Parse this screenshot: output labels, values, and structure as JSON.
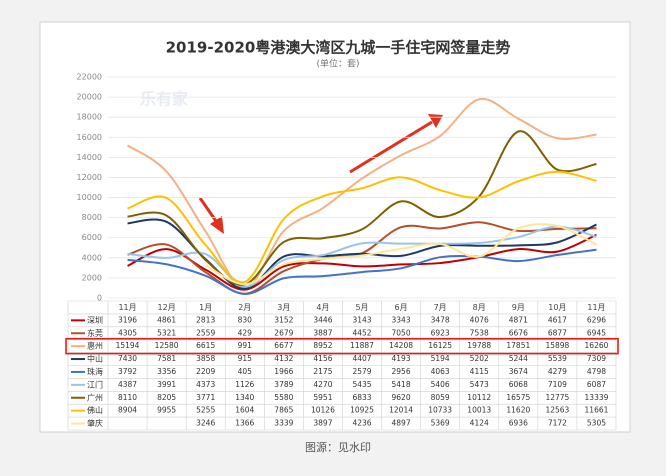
{
  "chart_data": {
    "type": "line",
    "title": "2019-2020粤港澳大湾区九城一手住宅网签量走势",
    "subtitle": "(单位：套)",
    "watermark": "乐有家",
    "caption": "图源：见水印",
    "categories": [
      "11月",
      "12月",
      "1月",
      "2月",
      "3月",
      "4月",
      "5月",
      "6月",
      "7月",
      "8月",
      "9月",
      "10月",
      "11月"
    ],
    "ylim": [
      0,
      22000
    ],
    "yticks": [
      0,
      2000,
      4000,
      6000,
      8000,
      10000,
      12000,
      14000,
      16000,
      18000,
      20000,
      22000
    ],
    "grid": true,
    "highlight": "惠州",
    "series": [
      {
        "name": "深圳",
        "color": "#c00000",
        "values": [
          3196,
          4861,
          2813,
          830,
          3152,
          3446,
          3143,
          3343,
          3478,
          4076,
          4871,
          4617,
          6296
        ]
      },
      {
        "name": "东莞",
        "color": "#b4502d",
        "values": [
          4305,
          5321,
          2559,
          429,
          2679,
          3887,
          4452,
          7050,
          6923,
          7538,
          6676,
          6877,
          6945
        ]
      },
      {
        "name": "惠州",
        "color": "#f4b183",
        "values": [
          15194,
          12580,
          6615,
          991,
          6677,
          8952,
          11887,
          14208,
          16125,
          19788,
          17851,
          15898,
          16260
        ]
      },
      {
        "name": "中山",
        "color": "#1f3864",
        "values": [
          7430,
          7581,
          3858,
          915,
          4132,
          4156,
          4407,
          4193,
          5194,
          5202,
          5244,
          5539,
          7309
        ]
      },
      {
        "name": "珠海",
        "color": "#4472c4",
        "values": [
          3792,
          3356,
          2209,
          405,
          1966,
          2175,
          2579,
          2956,
          4063,
          4115,
          3674,
          4279,
          4798
        ]
      },
      {
        "name": "江门",
        "color": "#9dc3e6",
        "values": [
          4387,
          3991,
          4373,
          1126,
          3789,
          4270,
          5435,
          5418,
          5406,
          5473,
          6068,
          7109,
          6087
        ]
      },
      {
        "name": "广州",
        "color": "#7f6000",
        "values": [
          8110,
          8205,
          3771,
          1340,
          5580,
          5951,
          6833,
          9620,
          8059,
          10112,
          16575,
          12775,
          13339
        ]
      },
      {
        "name": "佛山",
        "color": "#ffc000",
        "values": [
          8904,
          9955,
          5255,
          1604,
          7865,
          10126,
          10925,
          12014,
          10733,
          10013,
          11620,
          12563,
          11661
        ]
      },
      {
        "name": "肇庆",
        "color": "#ffe699",
        "values": [
          null,
          null,
          3246,
          1366,
          3339,
          3897,
          4236,
          4897,
          5369,
          4124,
          6936,
          7172,
          5305
        ]
      }
    ]
  }
}
